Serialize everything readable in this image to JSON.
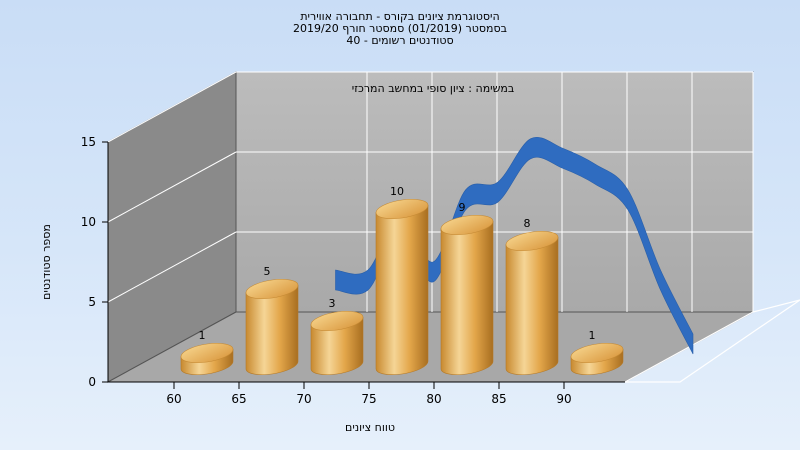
{
  "chart_data": {
    "type": "bar",
    "title_lines": [
      "היסטוגרמת ציונים בקורס - תחבורה אווירית",
      "בסמסטר  (01/2019)  סמסטר חורף 2019/20",
      "סטודנטים רשומים - 40"
    ],
    "subtitle": "במשימה : ציון סופי במחשב המרכזי",
    "xlabel": "טווח ציונים",
    "ylabel": "מספר סטודנטים",
    "x_ticks": [
      "60",
      "65",
      "70",
      "75",
      "80",
      "85",
      "90"
    ],
    "y_ticks": [
      "0",
      "5",
      "10",
      "15"
    ],
    "ylim": [
      0,
      15
    ],
    "categories": [
      "60",
      "65",
      "70",
      "75",
      "80",
      "85",
      "90"
    ],
    "values": [
      1,
      5,
      3,
      10,
      9,
      8,
      1
    ],
    "value_labels": [
      "1",
      "5",
      "3",
      "10",
      "9",
      "8",
      "1"
    ],
    "distribution_curve": [
      {
        "x": 67.5,
        "y": 5
      },
      {
        "x": 70,
        "y": 5
      },
      {
        "x": 72.5,
        "y": 8.5
      },
      {
        "x": 75,
        "y": 5.5
      },
      {
        "x": 77.5,
        "y": 10
      },
      {
        "x": 80,
        "y": 10.5
      },
      {
        "x": 82.5,
        "y": 13.2
      },
      {
        "x": 85,
        "y": 12.6
      },
      {
        "x": 87.5,
        "y": 11.6
      },
      {
        "x": 90,
        "y": 10
      },
      {
        "x": 92.5,
        "y": 5
      },
      {
        "x": 95,
        "y": 1
      }
    ],
    "colors": {
      "bar_light": "#f3cf86",
      "bar_mid": "#e3a64a",
      "bar_dark": "#b87a26",
      "curve": "#2f6cc0",
      "back_wall": "#b4b4b4",
      "side_wall": "#878787",
      "floor": "#a6a6a6"
    }
  }
}
